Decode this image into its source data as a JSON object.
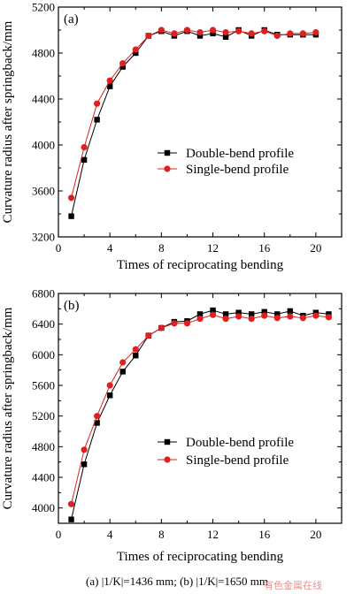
{
  "figure": {
    "caption": "(a) |1/K|=1436 mm; (b) |1/K|=1650 mm",
    "watermark": "有色金属在线"
  },
  "chart_data": [
    {
      "type": "line",
      "panel_label": "(a)",
      "xlabel": "Times of reciprocating bending",
      "ylabel": "Curvature radius after springback/mm",
      "xlim": [
        0,
        22
      ],
      "ylim": [
        3200,
        5200
      ],
      "xticks": [
        0,
        4,
        8,
        12,
        16,
        20
      ],
      "yticks": [
        3200,
        3600,
        4000,
        4400,
        4800,
        5200
      ],
      "legend_position": "center-right",
      "series": [
        {
          "name": "Double-bend profile",
          "color": "#000000",
          "marker": "square",
          "x": [
            1,
            2,
            3,
            4,
            5,
            6,
            7,
            8,
            9,
            10,
            11,
            12,
            13,
            14,
            15,
            16,
            17,
            18,
            19,
            20
          ],
          "y": [
            3380,
            3870,
            4220,
            4510,
            4680,
            4800,
            4950,
            4990,
            4950,
            4990,
            4950,
            4970,
            4940,
            5000,
            4950,
            5000,
            4960,
            4960,
            4960,
            4960
          ]
        },
        {
          "name": "Single-bend profile",
          "color": "#e02020",
          "marker": "circle",
          "x": [
            1,
            2,
            3,
            4,
            5,
            6,
            7,
            8,
            9,
            10,
            11,
            12,
            13,
            14,
            15,
            16,
            17,
            18,
            19,
            20
          ],
          "y": [
            3540,
            3980,
            4360,
            4560,
            4710,
            4830,
            4950,
            5000,
            4970,
            5000,
            4980,
            5000,
            4980,
            4990,
            4970,
            4990,
            4950,
            4970,
            4970,
            4980
          ]
        }
      ]
    },
    {
      "type": "line",
      "panel_label": "(b)",
      "xlabel": "Times of reciprocating bending",
      "ylabel": "Curvature radius after springback/mm",
      "xlim": [
        0,
        22
      ],
      "ylim": [
        3800,
        6800
      ],
      "xticks": [
        0,
        4,
        8,
        12,
        16,
        20
      ],
      "yticks": [
        4000,
        4400,
        4800,
        5200,
        5600,
        6000,
        6400,
        6800
      ],
      "legend_position": "center-right",
      "series": [
        {
          "name": "Double-bend profile",
          "color": "#000000",
          "marker": "square",
          "x": [
            1,
            2,
            3,
            4,
            5,
            6,
            7,
            8,
            9,
            10,
            11,
            12,
            13,
            14,
            15,
            16,
            17,
            18,
            19,
            20,
            21
          ],
          "y": [
            3850,
            4570,
            5110,
            5470,
            5780,
            5990,
            6250,
            6350,
            6430,
            6440,
            6530,
            6580,
            6530,
            6550,
            6530,
            6560,
            6530,
            6570,
            6510,
            6550,
            6530
          ]
        },
        {
          "name": "Single-bend profile",
          "color": "#e02020",
          "marker": "circle",
          "x": [
            1,
            2,
            3,
            4,
            5,
            6,
            7,
            8,
            9,
            10,
            11,
            12,
            13,
            14,
            15,
            16,
            17,
            18,
            19,
            20,
            21
          ],
          "y": [
            4050,
            4760,
            5200,
            5600,
            5900,
            6070,
            6250,
            6350,
            6410,
            6410,
            6470,
            6520,
            6470,
            6500,
            6470,
            6510,
            6480,
            6500,
            6480,
            6510,
            6490
          ]
        }
      ]
    }
  ]
}
